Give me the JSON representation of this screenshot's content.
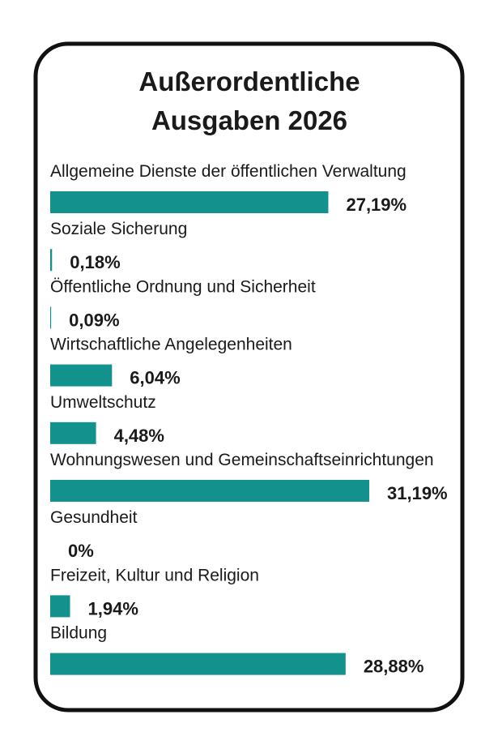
{
  "chart_data": {
    "type": "bar",
    "orientation": "horizontal",
    "title": [
      "Außerordentliche",
      "Ausgaben 2026"
    ],
    "categories": [
      "Allgemeine Dienste der öffentlichen Verwaltung",
      "Soziale Sicherung",
      "Öffentliche Ordnung und Sicherheit",
      "Wirtschaftliche Angelegenheiten",
      "Umweltschutz",
      "Wohnungswesen und Gemeinschaftseinrichtungen",
      "Gesundheit",
      "Freizeit, Kultur und Religion",
      "Bildung"
    ],
    "values": [
      27.19,
      0.18,
      0.09,
      6.04,
      4.48,
      31.19,
      0,
      1.94,
      28.88
    ],
    "value_labels": [
      "27,19%",
      "0,18%",
      "0,09%",
      "6,04%",
      "4,48%",
      "31,19%",
      "0%",
      "1,94%",
      "28,88%"
    ],
    "color": "#13918c"
  }
}
